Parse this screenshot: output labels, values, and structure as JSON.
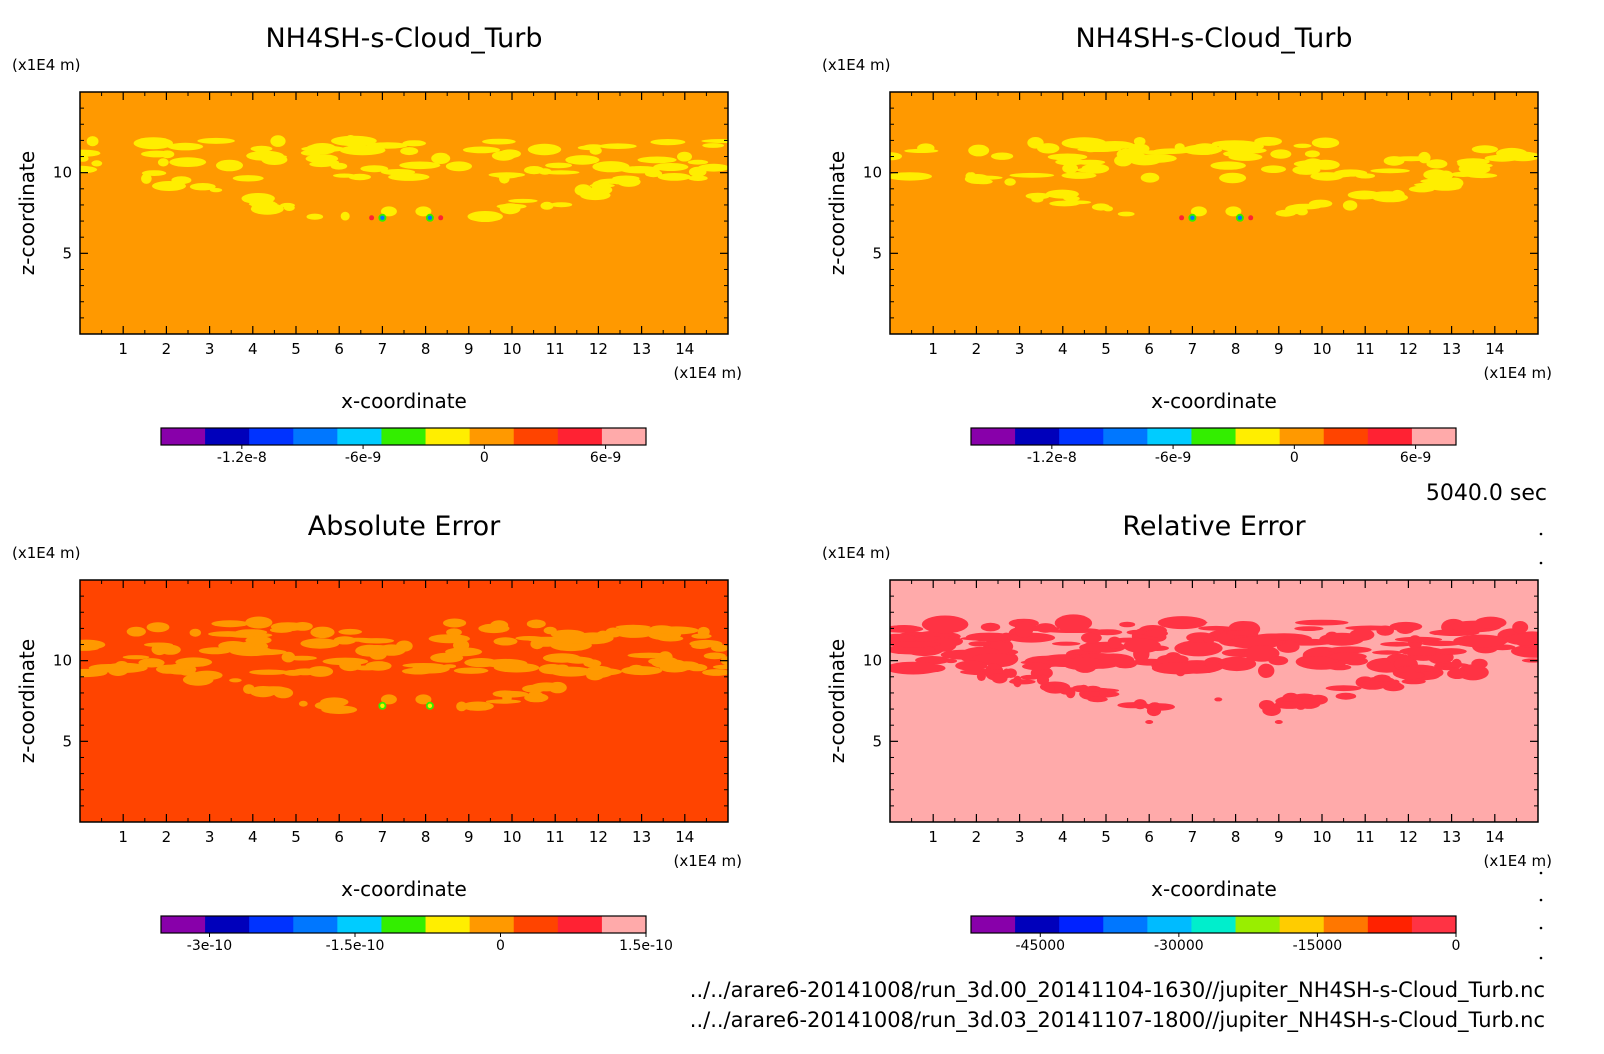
{
  "time_label": "5040.0 sec",
  "footer_lines": [
    "../../arare6-20141008/run_3d.00_20141104-1630//jupiter_NH4SH-s-Cloud_Turb.nc",
    "../../arare6-20141008/run_3d.03_20141107-1800//jupiter_NH4SH-s-Cloud_Turb.nc"
  ],
  "chart_data": [
    {
      "type": "heatmap",
      "title": "NH4SH-s-Cloud_Turb",
      "xlabel": "x-coordinate",
      "ylabel": "z-coordinate",
      "x_unit": "(x1E4 m)",
      "y_unit": "(x1E4 m)",
      "x_ticks": [
        "1",
        "2",
        "3",
        "4",
        "5",
        "6",
        "7",
        "8",
        "9",
        "10",
        "11",
        "12",
        "13",
        "14"
      ],
      "y_ticks": [
        "5",
        "10"
      ],
      "xlim": [
        0,
        15
      ],
      "ylim": [
        0,
        15
      ],
      "background_color": "#ff9900",
      "feature_color": "#ffee00",
      "colorbar_colors": [
        "#8800aa",
        "#0000bb",
        "#0033ff",
        "#0077ff",
        "#00ccff",
        "#33ee00",
        "#ffee00",
        "#ff9900",
        "#ff4400",
        "#ff2233",
        "#ffaaaa"
      ],
      "colorbar_labels": [
        {
          "text": "-1.2e-8",
          "value": -1.2e-08
        },
        {
          "text": "-6e-9",
          "value": -6e-09
        },
        {
          "text": "0",
          "value": 0
        },
        {
          "text": "6e-9",
          "value": 6e-09
        }
      ],
      "colorbar_range": [
        -1.6e-08,
        8e-09
      ]
    },
    {
      "type": "heatmap",
      "title": "NH4SH-s-Cloud_Turb",
      "xlabel": "x-coordinate",
      "ylabel": "z-coordinate",
      "x_unit": "(x1E4 m)",
      "y_unit": "(x1E4 m)",
      "x_ticks": [
        "1",
        "2",
        "3",
        "4",
        "5",
        "6",
        "7",
        "8",
        "9",
        "10",
        "11",
        "12",
        "13",
        "14"
      ],
      "y_ticks": [
        "5",
        "10"
      ],
      "xlim": [
        0,
        15
      ],
      "ylim": [
        0,
        15
      ],
      "background_color": "#ff9900",
      "feature_color": "#ffee00",
      "colorbar_colors": [
        "#8800aa",
        "#0000bb",
        "#0033ff",
        "#0077ff",
        "#00ccff",
        "#33ee00",
        "#ffee00",
        "#ff9900",
        "#ff4400",
        "#ff2233",
        "#ffaaaa"
      ],
      "colorbar_labels": [
        {
          "text": "-1.2e-8",
          "value": -1.2e-08
        },
        {
          "text": "-6e-9",
          "value": -6e-09
        },
        {
          "text": "0",
          "value": 0
        },
        {
          "text": "6e-9",
          "value": 6e-09
        }
      ],
      "colorbar_range": [
        -1.6e-08,
        8e-09
      ]
    },
    {
      "type": "heatmap",
      "title": "Absolute Error",
      "xlabel": "x-coordinate",
      "ylabel": "z-coordinate",
      "x_unit": "(x1E4 m)",
      "y_unit": "(x1E4 m)",
      "x_ticks": [
        "1",
        "2",
        "3",
        "4",
        "5",
        "6",
        "7",
        "8",
        "9",
        "10",
        "11",
        "12",
        "13",
        "14"
      ],
      "y_ticks": [
        "5",
        "10"
      ],
      "xlim": [
        0,
        15
      ],
      "ylim": [
        0,
        15
      ],
      "background_color": "#ff4400",
      "feature_color": "#ff9900",
      "colorbar_colors": [
        "#8800aa",
        "#0000bb",
        "#0033ff",
        "#0077ff",
        "#00ccff",
        "#33ee00",
        "#ffee00",
        "#ff9900",
        "#ff4400",
        "#ff2233",
        "#ffaaaa"
      ],
      "colorbar_labels": [
        {
          "text": "-3e-10",
          "value": -3e-10
        },
        {
          "text": "-1.5e-10",
          "value": -1.5e-10
        },
        {
          "text": "0",
          "value": 0
        },
        {
          "text": "1.5e-10",
          "value": 1.5e-10
        }
      ],
      "colorbar_range": [
        -3.5e-10,
        1.5e-10
      ]
    },
    {
      "type": "heatmap",
      "title": "Relative Error",
      "xlabel": "x-coordinate",
      "ylabel": "z-coordinate",
      "x_unit": "(x1E4 m)",
      "y_unit": "(x1E4 m)",
      "x_ticks": [
        "1",
        "2",
        "3",
        "4",
        "5",
        "6",
        "7",
        "8",
        "9",
        "10",
        "11",
        "12",
        "13",
        "14"
      ],
      "y_ticks": [
        "5",
        "10"
      ],
      "xlim": [
        0,
        15
      ],
      "ylim": [
        0,
        15
      ],
      "background_color": "#ffaaaa",
      "feature_color": "#ff3344",
      "colorbar_colors": [
        "#8800aa",
        "#0000bb",
        "#0022ff",
        "#0077ff",
        "#00bbff",
        "#00eecc",
        "#99ee00",
        "#ffcc00",
        "#ff7700",
        "#ff2200",
        "#ff3344"
      ],
      "colorbar_labels": [
        {
          "text": "-45000",
          "value": -45000
        },
        {
          "text": "-30000",
          "value": -30000
        },
        {
          "text": "-15000",
          "value": -15000
        },
        {
          "text": "0",
          "value": 0
        }
      ],
      "colorbar_range": [
        -52500,
        0
      ]
    }
  ]
}
